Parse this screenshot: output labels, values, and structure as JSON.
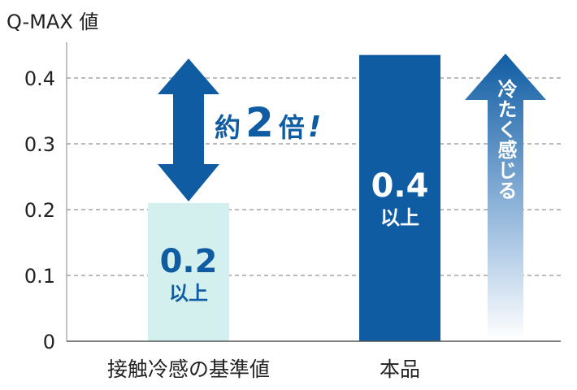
{
  "chart_data": {
    "type": "bar",
    "ylabel": "Q-MAX 値",
    "ylim": [
      0,
      0.45
    ],
    "yticks": [
      {
        "value": 0,
        "label": "0"
      },
      {
        "value": 0.1,
        "label": "0.1"
      },
      {
        "value": 0.2,
        "label": "0.2"
      },
      {
        "value": 0.3,
        "label": "0.3"
      },
      {
        "value": 0.4,
        "label": "0.4"
      }
    ],
    "grid": "dashed horizontal",
    "categories": [
      "接触冷感の基準値",
      "本品"
    ],
    "values": [
      0.21,
      0.435
    ],
    "bar_labels": [
      {
        "value": "0.2",
        "suffix": "以上"
      },
      {
        "value": "0.4",
        "suffix": "以上"
      }
    ],
    "bar_colors": [
      "#d3f0ee",
      "#0f5ca3"
    ],
    "annotations": {
      "comparison": {
        "prefix": "約",
        "number": "2",
        "suffix": "倍",
        "mark": "!"
      },
      "cool_arrow_text": "冷たく感じる"
    },
    "colors": {
      "accent": "#0f5ca3",
      "text": "#222222",
      "grid": "#777777"
    }
  }
}
